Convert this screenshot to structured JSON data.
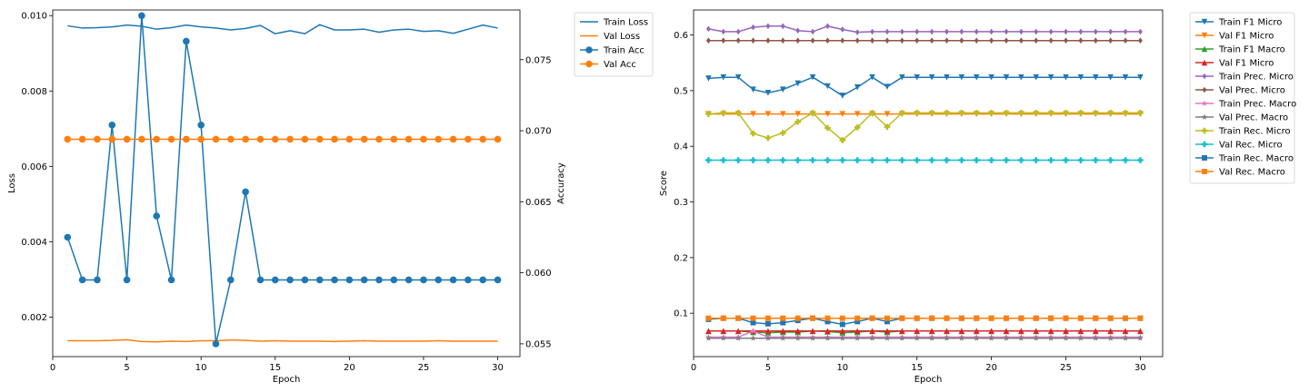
{
  "chart_data": [
    {
      "type": "line",
      "xlabel": "Epoch",
      "ylabel": "Loss",
      "y2label": "Accuracy",
      "xlim": [
        0,
        31.5
      ],
      "ylim": [
        0.00095,
        0.01015
      ],
      "y2lim": [
        0.0541,
        0.0785
      ],
      "xticks": [
        0,
        5,
        10,
        15,
        20,
        25,
        30
      ],
      "yticks": [
        0.002,
        0.004,
        0.006,
        0.008,
        0.01
      ],
      "yticklabels": [
        "0.002",
        "0.004",
        "0.006",
        "0.008",
        "0.010"
      ],
      "y2ticks": [
        0.055,
        0.06,
        0.065,
        0.07,
        0.075
      ],
      "y2ticklabels": [
        "0.055",
        "0.060",
        "0.065",
        "0.070",
        "0.075"
      ],
      "grid": false,
      "legend": "outside-right-top",
      "x": [
        1,
        2,
        3,
        4,
        5,
        6,
        7,
        8,
        9,
        10,
        11,
        12,
        13,
        14,
        15,
        16,
        17,
        18,
        19,
        20,
        21,
        22,
        23,
        24,
        25,
        26,
        27,
        28,
        29,
        30
      ],
      "series": [
        {
          "name": "Train Loss",
          "axis": "left",
          "marker": "none",
          "color": "#1f77b4",
          "values": [
            0.00973,
            0.00967,
            0.00968,
            0.0097,
            0.00975,
            0.00972,
            0.00964,
            0.00968,
            0.00975,
            0.0097,
            0.00967,
            0.00962,
            0.00966,
            0.00974,
            0.00952,
            0.0096,
            0.00952,
            0.00976,
            0.00962,
            0.00962,
            0.00964,
            0.00956,
            0.00962,
            0.00964,
            0.00958,
            0.0096,
            0.00953,
            0.00964,
            0.00975,
            0.00967
          ]
        },
        {
          "name": "Val Loss",
          "axis": "left",
          "marker": "none",
          "color": "#ff7f0e",
          "values": [
            0.00137,
            0.00137,
            0.00137,
            0.00138,
            0.0014,
            0.00135,
            0.00134,
            0.00136,
            0.00135,
            0.00137,
            0.00137,
            0.00139,
            0.00138,
            0.00136,
            0.00137,
            0.00136,
            0.00136,
            0.00136,
            0.00135,
            0.00136,
            0.00137,
            0.00136,
            0.00136,
            0.00136,
            0.00136,
            0.00137,
            0.00136,
            0.00136,
            0.00136,
            0.00136
          ]
        },
        {
          "name": "Train Acc",
          "axis": "right",
          "marker": "o",
          "color": "#1f77b4",
          "values": [
            0.0625,
            0.0595,
            0.0595,
            0.0704,
            0.0595,
            0.0781,
            0.064,
            0.0595,
            0.0763,
            0.0704,
            0.055,
            0.0595,
            0.0657,
            0.0595,
            0.0595,
            0.0595,
            0.0595,
            0.0595,
            0.0595,
            0.0595,
            0.0595,
            0.0595,
            0.0595,
            0.0595,
            0.0595,
            0.0595,
            0.0595,
            0.0595,
            0.0595,
            0.0595
          ]
        },
        {
          "name": "Val Acc",
          "axis": "right",
          "marker": "o",
          "color": "#ff7f0e",
          "values": [
            0.0694,
            0.0694,
            0.0694,
            0.0694,
            0.0694,
            0.0694,
            0.0694,
            0.0694,
            0.0694,
            0.0694,
            0.0694,
            0.0694,
            0.0694,
            0.0694,
            0.0694,
            0.0694,
            0.0694,
            0.0694,
            0.0694,
            0.0694,
            0.0694,
            0.0694,
            0.0694,
            0.0694,
            0.0694,
            0.0694,
            0.0694,
            0.0694,
            0.0694,
            0.0694
          ]
        }
      ]
    },
    {
      "type": "line",
      "xlabel": "Epoch",
      "ylabel": "Score",
      "xlim": [
        0,
        31.5
      ],
      "ylim": [
        0.022,
        0.645
      ],
      "xticks": [
        0,
        5,
        10,
        15,
        20,
        25,
        30
      ],
      "yticks": [
        0.1,
        0.2,
        0.3,
        0.4,
        0.5,
        0.6
      ],
      "yticklabels": [
        "0.1",
        "0.2",
        "0.3",
        "0.4",
        "0.5",
        "0.6"
      ],
      "grid": false,
      "legend": "outside-right-top",
      "x": [
        1,
        2,
        3,
        4,
        5,
        6,
        7,
        8,
        9,
        10,
        11,
        12,
        13,
        14,
        15,
        16,
        17,
        18,
        19,
        20,
        21,
        22,
        23,
        24,
        25,
        26,
        27,
        28,
        29,
        30
      ],
      "series": [
        {
          "name": "Train F1 Micro",
          "marker": "v",
          "color": "#1f77b4",
          "values": [
            0.522,
            0.524,
            0.524,
            0.502,
            0.496,
            0.502,
            0.513,
            0.524,
            0.508,
            0.491,
            0.506,
            0.524,
            0.507,
            0.524,
            0.524,
            0.524,
            0.524,
            0.524,
            0.524,
            0.524,
            0.524,
            0.524,
            0.524,
            0.524,
            0.524,
            0.524,
            0.524,
            0.524,
            0.524,
            0.524
          ]
        },
        {
          "name": "Val F1 Micro",
          "marker": "v",
          "color": "#ff7f0e",
          "values": [
            0.458,
            0.458,
            0.458,
            0.458,
            0.458,
            0.458,
            0.458,
            0.458,
            0.458,
            0.458,
            0.458,
            0.458,
            0.458,
            0.458,
            0.458,
            0.458,
            0.458,
            0.458,
            0.458,
            0.458,
            0.458,
            0.458,
            0.458,
            0.458,
            0.458,
            0.458,
            0.458,
            0.458,
            0.458,
            0.458
          ]
        },
        {
          "name": "Train F1 Macro",
          "marker": "^",
          "color": "#2ca02c",
          "values": [
            0.068,
            0.068,
            0.068,
            0.066,
            0.065,
            0.066,
            0.066,
            0.068,
            0.067,
            0.065,
            0.066,
            0.068,
            0.066,
            0.068,
            0.068,
            0.068,
            0.068,
            0.068,
            0.068,
            0.068,
            0.068,
            0.068,
            0.068,
            0.068,
            0.068,
            0.068,
            0.068,
            0.068,
            0.068,
            0.068
          ]
        },
        {
          "name": "Val F1 Micro",
          "marker": "^",
          "color": "#d62728",
          "values": [
            0.068,
            0.068,
            0.068,
            0.068,
            0.068,
            0.068,
            0.068,
            0.068,
            0.068,
            0.068,
            0.068,
            0.068,
            0.068,
            0.068,
            0.068,
            0.068,
            0.068,
            0.068,
            0.068,
            0.068,
            0.068,
            0.068,
            0.068,
            0.068,
            0.068,
            0.068,
            0.068,
            0.068,
            0.068,
            0.068
          ]
        },
        {
          "name": "Train Prec. Micro",
          "marker": "D",
          "color": "#9467bd",
          "values": [
            0.611,
            0.606,
            0.606,
            0.614,
            0.616,
            0.616,
            0.608,
            0.606,
            0.616,
            0.61,
            0.605,
            0.606,
            0.606,
            0.606,
            0.606,
            0.606,
            0.606,
            0.606,
            0.606,
            0.606,
            0.606,
            0.606,
            0.606,
            0.606,
            0.606,
            0.606,
            0.606,
            0.606,
            0.606,
            0.606
          ]
        },
        {
          "name": "Val Prec. Micro",
          "marker": "D",
          "color": "#8c564b",
          "values": [
            0.59,
            0.59,
            0.59,
            0.59,
            0.59,
            0.59,
            0.59,
            0.59,
            0.59,
            0.59,
            0.59,
            0.59,
            0.59,
            0.59,
            0.59,
            0.59,
            0.59,
            0.59,
            0.59,
            0.59,
            0.59,
            0.59,
            0.59,
            0.59,
            0.59,
            0.59,
            0.59,
            0.59,
            0.59,
            0.59
          ]
        },
        {
          "name": "Train Prec. Macro",
          "marker": "*",
          "color": "#e377c2",
          "values": [
            0.057,
            0.057,
            0.057,
            0.068,
            0.057,
            0.057,
            0.057,
            0.057,
            0.057,
            0.057,
            0.057,
            0.057,
            0.057,
            0.057,
            0.057,
            0.057,
            0.057,
            0.057,
            0.057,
            0.057,
            0.057,
            0.057,
            0.057,
            0.057,
            0.057,
            0.057,
            0.057,
            0.057,
            0.057,
            0.057
          ]
        },
        {
          "name": "Val Prec. Macro",
          "marker": "*",
          "color": "#7f7f7f",
          "values": [
            0.055,
            0.055,
            0.055,
            0.055,
            0.055,
            0.055,
            0.055,
            0.055,
            0.055,
            0.055,
            0.055,
            0.055,
            0.055,
            0.055,
            0.055,
            0.055,
            0.055,
            0.055,
            0.055,
            0.055,
            0.055,
            0.055,
            0.055,
            0.055,
            0.055,
            0.055,
            0.055,
            0.055,
            0.055,
            0.055
          ]
        },
        {
          "name": "Train Rec. Micro",
          "marker": "P",
          "color": "#bcbd22",
          "values": [
            0.458,
            0.46,
            0.46,
            0.423,
            0.415,
            0.424,
            0.444,
            0.46,
            0.433,
            0.411,
            0.434,
            0.46,
            0.435,
            0.46,
            0.46,
            0.46,
            0.46,
            0.46,
            0.46,
            0.46,
            0.46,
            0.46,
            0.46,
            0.46,
            0.46,
            0.46,
            0.46,
            0.46,
            0.46,
            0.46
          ]
        },
        {
          "name": "Val Rec. Micro",
          "marker": "P",
          "color": "#17becf",
          "values": [
            0.375,
            0.375,
            0.375,
            0.375,
            0.375,
            0.375,
            0.375,
            0.375,
            0.375,
            0.375,
            0.375,
            0.375,
            0.375,
            0.375,
            0.375,
            0.375,
            0.375,
            0.375,
            0.375,
            0.375,
            0.375,
            0.375,
            0.375,
            0.375,
            0.375,
            0.375,
            0.375,
            0.375,
            0.375,
            0.375
          ]
        },
        {
          "name": "Train Rec. Macro",
          "marker": "s",
          "color": "#1f77b4",
          "values": [
            0.089,
            0.091,
            0.091,
            0.083,
            0.081,
            0.083,
            0.087,
            0.091,
            0.085,
            0.08,
            0.085,
            0.091,
            0.085,
            0.091,
            0.091,
            0.091,
            0.091,
            0.091,
            0.091,
            0.091,
            0.091,
            0.091,
            0.091,
            0.091,
            0.091,
            0.091,
            0.091,
            0.091,
            0.091,
            0.091
          ]
        },
        {
          "name": "Val Rec. Macro",
          "marker": "s",
          "color": "#ff7f0e",
          "values": [
            0.091,
            0.091,
            0.091,
            0.091,
            0.091,
            0.091,
            0.091,
            0.091,
            0.091,
            0.091,
            0.091,
            0.091,
            0.091,
            0.091,
            0.091,
            0.091,
            0.091,
            0.091,
            0.091,
            0.091,
            0.091,
            0.091,
            0.091,
            0.091,
            0.091,
            0.091,
            0.091,
            0.091,
            0.091,
            0.091
          ]
        }
      ]
    }
  ]
}
